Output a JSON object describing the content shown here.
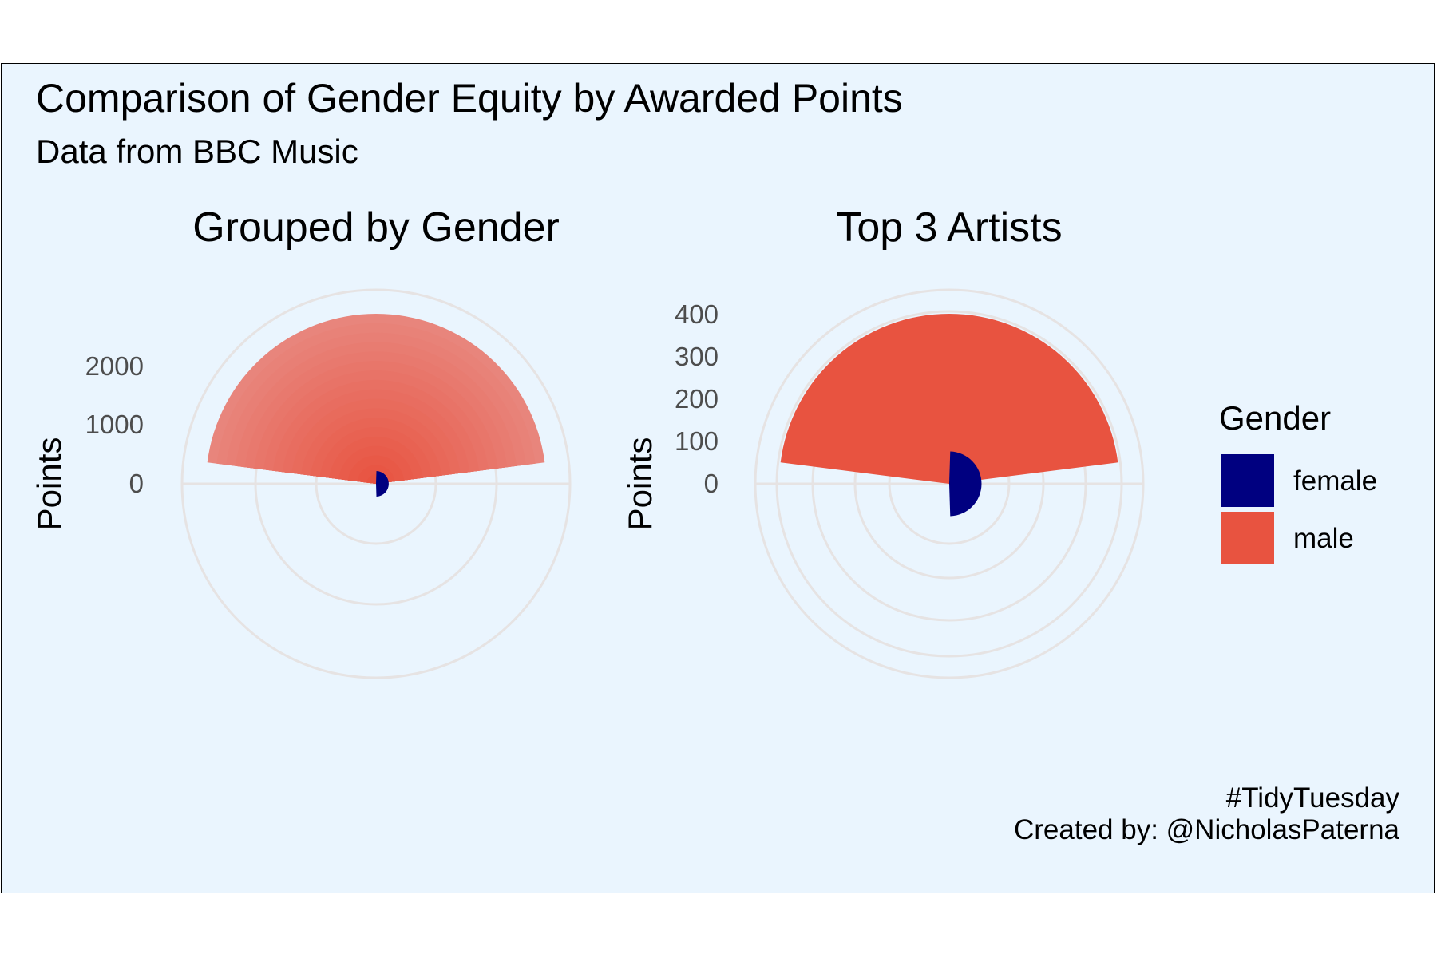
{
  "title": "Comparison of Gender Equity by Awarded Points",
  "subtitle": "Data from BBC Music",
  "caption": {
    "line1": "#TidyTuesday",
    "line2": "Created by: @NicholasPaterna"
  },
  "colors": {
    "background": "#eaf5fe",
    "grid": "#e6e3e3",
    "female": "#000080",
    "male": "#e85340",
    "male_light": "#e8837a"
  },
  "legend": {
    "title": "Gender",
    "items": [
      {
        "label": "female",
        "color": "#000080"
      },
      {
        "label": "male",
        "color": "#e85340"
      }
    ]
  },
  "chart_data": [
    {
      "type": "pie",
      "coord": "polar",
      "title": "Grouped by Gender",
      "ylabel": "Points",
      "yticks": [
        "0",
        "1000",
        "2000"
      ],
      "ylim": [
        0,
        3000
      ],
      "series": [
        {
          "name": "female",
          "value": 160,
          "theta_share": 0.03
        },
        {
          "name": "male",
          "value": 2800,
          "theta_share": 0.47
        }
      ]
    },
    {
      "type": "pie",
      "coord": "polar",
      "title": "Top 3 Artists",
      "ylabel": "Points",
      "yticks": [
        "0",
        "100",
        "200",
        "300",
        "400"
      ],
      "ylim": [
        0,
        450
      ],
      "series": [
        {
          "name": "female",
          "value": 75,
          "theta_share": 0.5
        },
        {
          "name": "male",
          "value": 400,
          "theta_share": 0.47
        }
      ]
    }
  ]
}
